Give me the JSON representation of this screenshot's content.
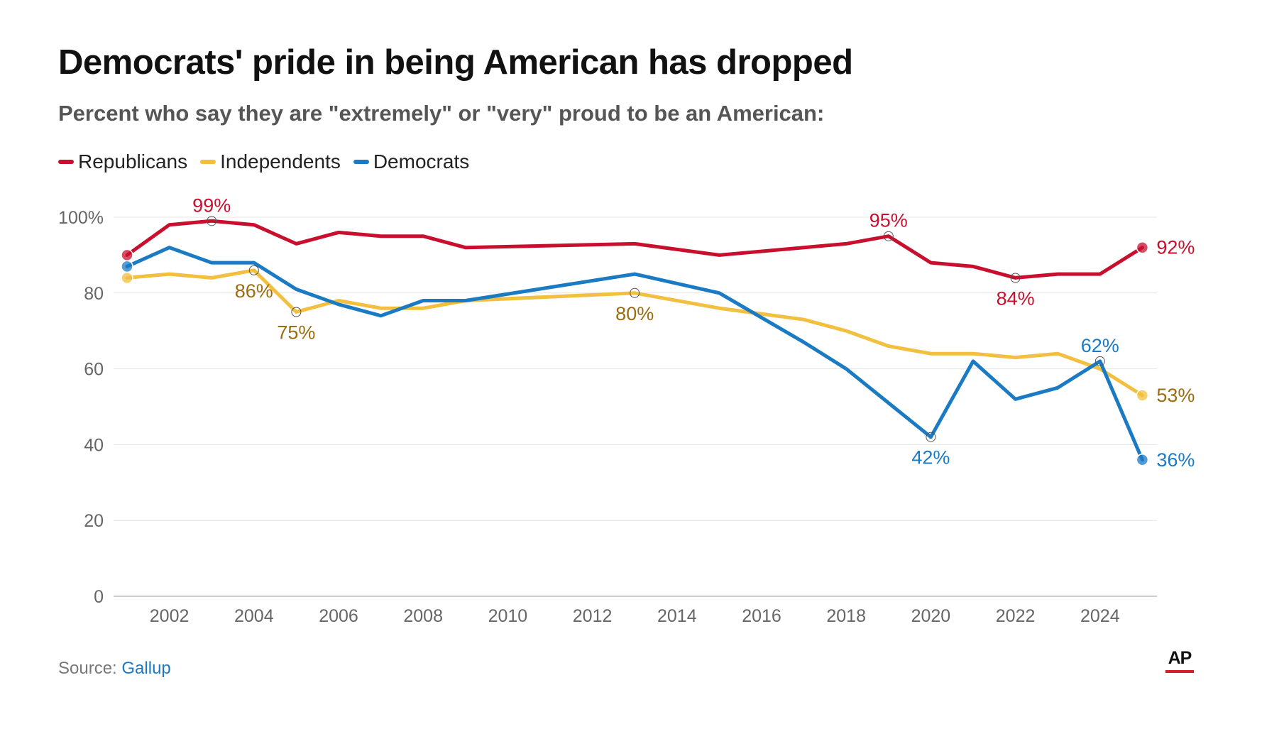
{
  "chart_data": {
    "type": "line",
    "title": "Democrats' pride in being American has dropped",
    "subtitle": "Percent who say they are \"extremely\" or \"very\" proud to be an American:",
    "ylim": [
      0,
      100
    ],
    "xlim": [
      2001,
      2025
    ],
    "yticks": [
      0,
      20,
      40,
      60,
      80,
      100
    ],
    "ytick_labels": [
      "0",
      "20",
      "40",
      "60",
      "80",
      "100%"
    ],
    "xticks": [
      2002,
      2004,
      2006,
      2008,
      2010,
      2012,
      2014,
      2016,
      2018,
      2020,
      2022,
      2024
    ],
    "xtick_labels": [
      "2002",
      "2004",
      "2006",
      "2008",
      "2010",
      "2012",
      "2014",
      "2016",
      "2018",
      "2020",
      "2022",
      "2024"
    ],
    "grid": true,
    "legend_position": "top-left",
    "series": [
      {
        "name": "Republicans",
        "color": "#c8102e",
        "label_color": "#c8102e",
        "points": [
          [
            2001,
            90
          ],
          [
            2002,
            98
          ],
          [
            2003,
            99
          ],
          [
            2004,
            98
          ],
          [
            2005,
            93
          ],
          [
            2006,
            96
          ],
          [
            2007,
            95
          ],
          [
            2008,
            95
          ],
          [
            2009,
            92
          ],
          [
            2013,
            93
          ],
          [
            2015,
            90
          ],
          [
            2017,
            92
          ],
          [
            2018,
            93
          ],
          [
            2019,
            95
          ],
          [
            2020,
            88
          ],
          [
            2021,
            87
          ],
          [
            2022,
            84
          ],
          [
            2023,
            85
          ],
          [
            2024,
            85
          ],
          [
            2025,
            92
          ]
        ],
        "annotations": [
          {
            "x": 2003,
            "y": 99,
            "text": "99%",
            "pos": "above"
          },
          {
            "x": 2019,
            "y": 95,
            "text": "95%",
            "pos": "above"
          },
          {
            "x": 2022,
            "y": 84,
            "text": "84%",
            "pos": "below"
          },
          {
            "x": 2025,
            "y": 92,
            "text": "92%",
            "pos": "right"
          }
        ]
      },
      {
        "name": "Independents",
        "color": "#f2bf3e",
        "label_color": "#9a6d10",
        "points": [
          [
            2001,
            84
          ],
          [
            2002,
            85
          ],
          [
            2003,
            84
          ],
          [
            2004,
            86
          ],
          [
            2005,
            75
          ],
          [
            2006,
            78
          ],
          [
            2007,
            76
          ],
          [
            2008,
            76
          ],
          [
            2009,
            78
          ],
          [
            2013,
            80
          ],
          [
            2015,
            76
          ],
          [
            2017,
            73
          ],
          [
            2018,
            70
          ],
          [
            2019,
            66
          ],
          [
            2020,
            64
          ],
          [
            2021,
            64
          ],
          [
            2022,
            63
          ],
          [
            2023,
            64
          ],
          [
            2024,
            60
          ],
          [
            2025,
            53
          ]
        ],
        "annotations": [
          {
            "x": 2004,
            "y": 86,
            "text": "86%",
            "pos": "below"
          },
          {
            "x": 2005,
            "y": 75,
            "text": "75%",
            "pos": "below"
          },
          {
            "x": 2013,
            "y": 80,
            "text": "80%",
            "pos": "below"
          },
          {
            "x": 2025,
            "y": 53,
            "text": "53%",
            "pos": "right"
          }
        ]
      },
      {
        "name": "Democrats",
        "color": "#1a7ac4",
        "label_color": "#1a7ac4",
        "points": [
          [
            2001,
            87
          ],
          [
            2002,
            92
          ],
          [
            2003,
            88
          ],
          [
            2004,
            88
          ],
          [
            2005,
            81
          ],
          [
            2006,
            77
          ],
          [
            2007,
            74
          ],
          [
            2008,
            78
          ],
          [
            2009,
            78
          ],
          [
            2013,
            85
          ],
          [
            2015,
            80
          ],
          [
            2017,
            67
          ],
          [
            2018,
            60
          ],
          [
            2020,
            42
          ],
          [
            2021,
            62
          ],
          [
            2022,
            52
          ],
          [
            2023,
            55
          ],
          [
            2024,
            62
          ],
          [
            2025,
            36
          ]
        ],
        "annotations": [
          {
            "x": 2020,
            "y": 42,
            "text": "42%",
            "pos": "below"
          },
          {
            "x": 2024,
            "y": 62,
            "text": "62%",
            "pos": "above"
          },
          {
            "x": 2025,
            "y": 36,
            "text": "36%",
            "pos": "right"
          }
        ]
      }
    ]
  },
  "footer": {
    "source_prefix": "Source:",
    "source_name": "Gallup",
    "logo_text": "AP"
  }
}
